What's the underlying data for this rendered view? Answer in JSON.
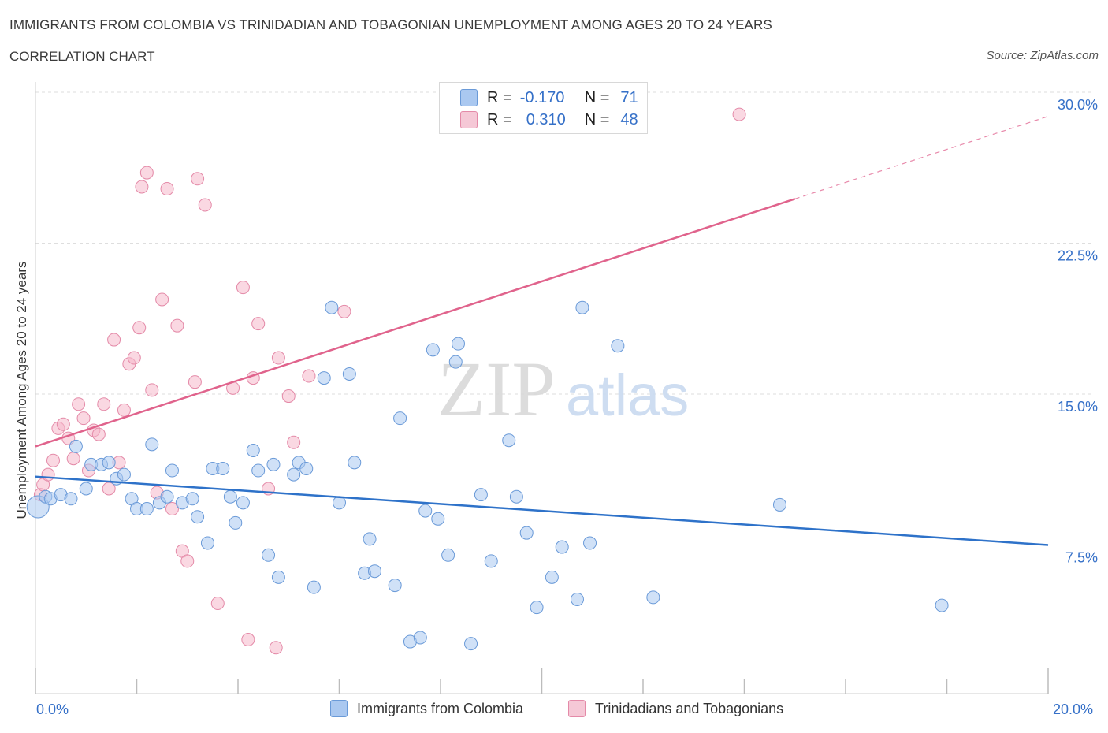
{
  "title": "IMMIGRANTS FROM COLOMBIA VS TRINIDADIAN AND TOBAGONIAN UNEMPLOYMENT AMONG AGES 20 TO 24 YEARS",
  "subtitle": "CORRELATION CHART",
  "source": "Source: ZipAtlas.com",
  "watermark": {
    "zip": "ZIP",
    "atlas": "atlas"
  },
  "colors": {
    "blue_fill": "#aac8f0",
    "blue_stroke": "#6a9ad8",
    "blue_line": "#2e72c9",
    "pink_fill": "#f5b8cb",
    "pink_stroke": "#e48aa8",
    "pink_line": "#e0638c",
    "accent_text": "#3570c8"
  },
  "legend": {
    "row1": {
      "r_label": "R =",
      "r_value": "-0.170",
      "n_label": "N =",
      "n_value": "71"
    },
    "row2": {
      "r_label": "R =",
      "r_value": "0.310",
      "n_label": "N =",
      "n_value": "48"
    }
  },
  "chart_data": {
    "type": "scatter",
    "title": "IMMIGRANTS FROM COLOMBIA VS TRINIDADIAN AND TOBAGONIAN UNEMPLOYMENT AMONG AGES 20 TO 24 YEARS",
    "xlabel": "",
    "ylabel": "Unemployment Among Ages 20 to 24 years",
    "xlim": [
      0,
      20
    ],
    "ylim": [
      0,
      30
    ],
    "x_tick_labels": [
      "0.0%",
      "20.0%"
    ],
    "y_ticks": [
      7.5,
      15.0,
      22.5,
      30.0
    ],
    "y_tick_labels": [
      "7.5%",
      "15.0%",
      "22.5%",
      "30.0%"
    ],
    "grid": "horizontal dashed",
    "legend_position": "bottom",
    "series": [
      {
        "name": "Immigrants from Colombia",
        "color": "#aac8f0",
        "r": -0.17,
        "n": 71,
        "trend": {
          "x": [
            0,
            20
          ],
          "y": [
            10.9,
            7.5
          ]
        },
        "points": [
          [
            0.05,
            9.4
          ],
          [
            0.2,
            9.9
          ],
          [
            0.3,
            9.8
          ],
          [
            0.5,
            10.0
          ],
          [
            0.7,
            9.8
          ],
          [
            0.8,
            12.4
          ],
          [
            1.0,
            10.3
          ],
          [
            1.1,
            11.5
          ],
          [
            1.3,
            11.5
          ],
          [
            1.45,
            11.6
          ],
          [
            1.6,
            10.8
          ],
          [
            1.75,
            11.0
          ],
          [
            1.9,
            9.8
          ],
          [
            2.0,
            9.3
          ],
          [
            2.2,
            9.3
          ],
          [
            2.3,
            12.5
          ],
          [
            2.45,
            9.6
          ],
          [
            2.6,
            9.9
          ],
          [
            2.7,
            11.2
          ],
          [
            2.9,
            9.6
          ],
          [
            3.1,
            9.8
          ],
          [
            3.2,
            8.9
          ],
          [
            3.4,
            7.6
          ],
          [
            3.5,
            11.3
          ],
          [
            3.7,
            11.3
          ],
          [
            3.85,
            9.9
          ],
          [
            3.95,
            8.6
          ],
          [
            4.1,
            9.6
          ],
          [
            4.3,
            12.2
          ],
          [
            4.4,
            11.2
          ],
          [
            4.6,
            7.0
          ],
          [
            4.7,
            11.5
          ],
          [
            4.8,
            5.9
          ],
          [
            5.1,
            11.0
          ],
          [
            5.2,
            11.6
          ],
          [
            5.35,
            11.3
          ],
          [
            5.5,
            5.4
          ],
          [
            5.7,
            15.8
          ],
          [
            5.85,
            19.3
          ],
          [
            6.0,
            9.6
          ],
          [
            6.2,
            16.0
          ],
          [
            6.3,
            11.6
          ],
          [
            6.5,
            6.1
          ],
          [
            6.6,
            7.8
          ],
          [
            6.7,
            6.2
          ],
          [
            7.1,
            5.5
          ],
          [
            7.2,
            13.8
          ],
          [
            7.4,
            2.7
          ],
          [
            7.6,
            2.9
          ],
          [
            7.7,
            9.2
          ],
          [
            7.85,
            17.2
          ],
          [
            7.95,
            8.8
          ],
          [
            8.15,
            7.0
          ],
          [
            8.3,
            16.6
          ],
          [
            8.35,
            17.5
          ],
          [
            8.6,
            2.6
          ],
          [
            8.8,
            10.0
          ],
          [
            9.0,
            6.7
          ],
          [
            9.35,
            12.7
          ],
          [
            9.5,
            9.9
          ],
          [
            9.7,
            8.1
          ],
          [
            9.9,
            4.4
          ],
          [
            10.2,
            5.9
          ],
          [
            10.4,
            7.4
          ],
          [
            10.7,
            4.8
          ],
          [
            10.8,
            19.3
          ],
          [
            10.95,
            7.6
          ],
          [
            11.5,
            17.4
          ],
          [
            12.2,
            4.9
          ],
          [
            14.7,
            9.5
          ],
          [
            17.9,
            4.5
          ]
        ]
      },
      {
        "name": "Trinidadians and Tobagonians",
        "color": "#f5b8cb",
        "r": 0.31,
        "n": 48,
        "trend": {
          "x": [
            0,
            15
          ],
          "y": [
            12.4,
            24.7
          ]
        },
        "trend_dashed": {
          "x": [
            15,
            20
          ],
          "y": [
            24.7,
            28.8
          ]
        },
        "points": [
          [
            0.1,
            10.0
          ],
          [
            0.15,
            10.5
          ],
          [
            0.25,
            11.0
          ],
          [
            0.35,
            11.7
          ],
          [
            0.45,
            13.3
          ],
          [
            0.55,
            13.5
          ],
          [
            0.65,
            12.8
          ],
          [
            0.75,
            11.8
          ],
          [
            0.85,
            14.5
          ],
          [
            0.95,
            13.8
          ],
          [
            1.05,
            11.2
          ],
          [
            1.15,
            13.2
          ],
          [
            1.25,
            13.0
          ],
          [
            1.35,
            14.5
          ],
          [
            1.45,
            10.3
          ],
          [
            1.55,
            17.7
          ],
          [
            1.65,
            11.6
          ],
          [
            1.75,
            14.2
          ],
          [
            1.85,
            16.5
          ],
          [
            1.95,
            16.8
          ],
          [
            2.05,
            18.3
          ],
          [
            2.1,
            25.3
          ],
          [
            2.2,
            26.0
          ],
          [
            2.3,
            15.2
          ],
          [
            2.4,
            10.1
          ],
          [
            2.5,
            19.7
          ],
          [
            2.6,
            25.2
          ],
          [
            2.7,
            9.3
          ],
          [
            2.8,
            18.4
          ],
          [
            2.9,
            7.2
          ],
          [
            3.0,
            6.7
          ],
          [
            3.15,
            15.6
          ],
          [
            3.2,
            25.7
          ],
          [
            3.35,
            24.4
          ],
          [
            3.6,
            4.6
          ],
          [
            3.9,
            15.3
          ],
          [
            4.1,
            20.3
          ],
          [
            4.2,
            2.8
          ],
          [
            4.3,
            15.8
          ],
          [
            4.4,
            18.5
          ],
          [
            4.6,
            10.3
          ],
          [
            4.75,
            2.4
          ],
          [
            4.8,
            16.8
          ],
          [
            5.0,
            14.9
          ],
          [
            5.1,
            12.6
          ],
          [
            5.4,
            15.9
          ],
          [
            6.1,
            19.1
          ],
          [
            13.9,
            28.9
          ]
        ]
      }
    ]
  },
  "bottom_legend": {
    "series1": "Immigrants from Colombia",
    "series2": "Trinidadians and Tobagonians"
  },
  "x_axis": {
    "left_label": "0.0%",
    "right_label": "20.0%"
  },
  "y_axis": {
    "label": "Unemployment Among Ages 20 to 24 years"
  }
}
